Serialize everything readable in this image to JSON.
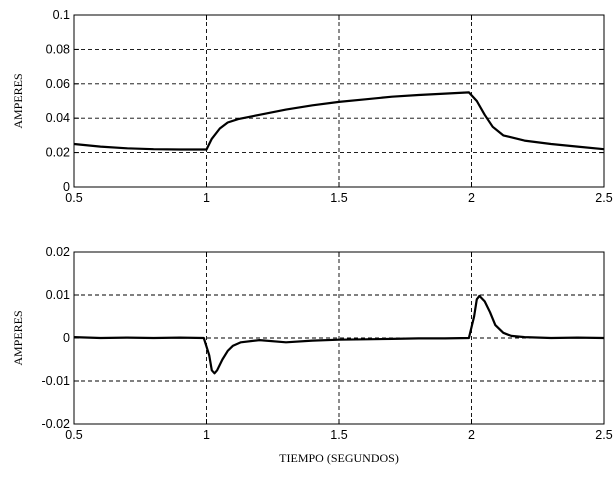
{
  "chart_data": [
    {
      "type": "line",
      "title": "",
      "xlabel": "",
      "ylabel": "AMPERES",
      "xlim": [
        0.5,
        2.5
      ],
      "ylim": [
        0,
        0.1
      ],
      "xticks": [
        0.5,
        1,
        1.5,
        2,
        2.5
      ],
      "xtick_labels": [
        "0.5",
        "1",
        "1.5",
        "2",
        "2.5"
      ],
      "yticks": [
        0,
        0.02,
        0.04,
        0.06,
        0.08,
        0.1
      ],
      "ytick_labels": [
        "0",
        "0.02",
        "0.04",
        "0.06",
        "0.08",
        "0.1"
      ],
      "grid": true,
      "series": [
        {
          "x": [
            0.5,
            0.6,
            0.7,
            0.8,
            0.9,
            1.0,
            1.02,
            1.05,
            1.08,
            1.12,
            1.2,
            1.3,
            1.4,
            1.5,
            1.6,
            1.7,
            1.8,
            1.9,
            1.99,
            2.02,
            2.05,
            2.08,
            2.12,
            2.2,
            2.3,
            2.4,
            2.5
          ],
          "y": [
            0.025,
            0.0235,
            0.0225,
            0.022,
            0.0218,
            0.0218,
            0.028,
            0.034,
            0.0375,
            0.0395,
            0.042,
            0.045,
            0.0475,
            0.0495,
            0.051,
            0.0525,
            0.0535,
            0.0543,
            0.055,
            0.05,
            0.042,
            0.035,
            0.03,
            0.027,
            0.025,
            0.0235,
            0.022
          ]
        }
      ]
    },
    {
      "type": "line",
      "title": "",
      "xlabel": "TIEMPO (SEGUNDOS)",
      "ylabel": "AMPERES",
      "xlim": [
        0.5,
        2.5
      ],
      "ylim": [
        -0.02,
        0.02
      ],
      "xticks": [
        0.5,
        1,
        1.5,
        2,
        2.5
      ],
      "xtick_labels": [
        "0.5",
        "1",
        "1.5",
        "2",
        "2.5"
      ],
      "yticks": [
        -0.02,
        -0.01,
        0,
        0.01,
        0.02
      ],
      "ytick_labels": [
        "-0.02",
        "-0.01",
        "0",
        "0.01",
        "0.02"
      ],
      "grid": true,
      "series": [
        {
          "x": [
            0.5,
            0.6,
            0.7,
            0.8,
            0.9,
            0.99,
            1.01,
            1.02,
            1.03,
            1.04,
            1.06,
            1.08,
            1.1,
            1.13,
            1.2,
            1.3,
            1.4,
            1.5,
            1.6,
            1.7,
            1.8,
            1.9,
            1.99,
            2.01,
            2.02,
            2.03,
            2.05,
            2.07,
            2.09,
            2.12,
            2.15,
            2.2,
            2.3,
            2.4,
            2.5
          ],
          "y": [
            0.0002,
            0.0,
            0.0001,
            0.0,
            0.0001,
            0.0,
            -0.004,
            -0.0075,
            -0.0082,
            -0.0075,
            -0.005,
            -0.003,
            -0.0018,
            -0.001,
            -0.0005,
            -0.001,
            -0.0006,
            -0.0004,
            -0.0003,
            -0.0002,
            -0.0001,
            -0.0001,
            0.0,
            0.005,
            0.009,
            0.0098,
            0.0085,
            0.006,
            0.003,
            0.0012,
            0.0005,
            0.0002,
            0.0,
            0.0001,
            0.0
          ]
        }
      ]
    }
  ]
}
